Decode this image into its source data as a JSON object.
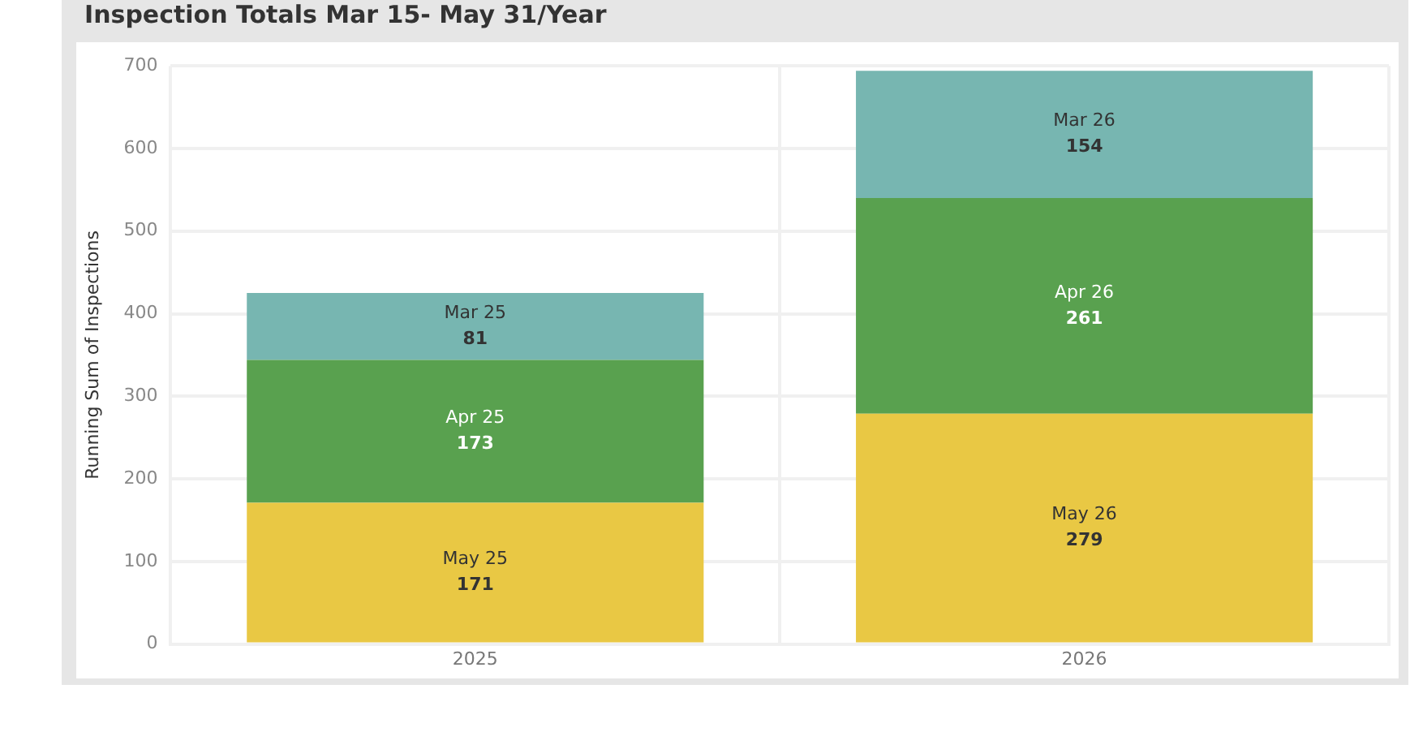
{
  "chart_data": {
    "type": "bar",
    "title": "Inspection Totals Mar 15- May 31/Year",
    "ylabel": "Running Sum of Inspections",
    "categories": [
      "2025",
      "2026"
    ],
    "stacked": true,
    "ylim": [
      0,
      700
    ],
    "yticks": [
      0,
      100,
      200,
      300,
      400,
      500,
      600,
      700
    ],
    "grid": true,
    "series": [
      {
        "color": "#e9c844",
        "values": [
          171,
          279
        ],
        "value_labels": [
          "May 25\n171",
          "May 26\n279"
        ]
      },
      {
        "color": "#59a14f",
        "values": [
          173,
          261
        ],
        "value_labels": [
          "Apr 25\n173",
          "Apr 26\n261"
        ]
      },
      {
        "color": "#77b6b1",
        "values": [
          81,
          154
        ],
        "value_labels": [
          "Mar 25\n81",
          "Mar 26\n154"
        ]
      }
    ]
  }
}
